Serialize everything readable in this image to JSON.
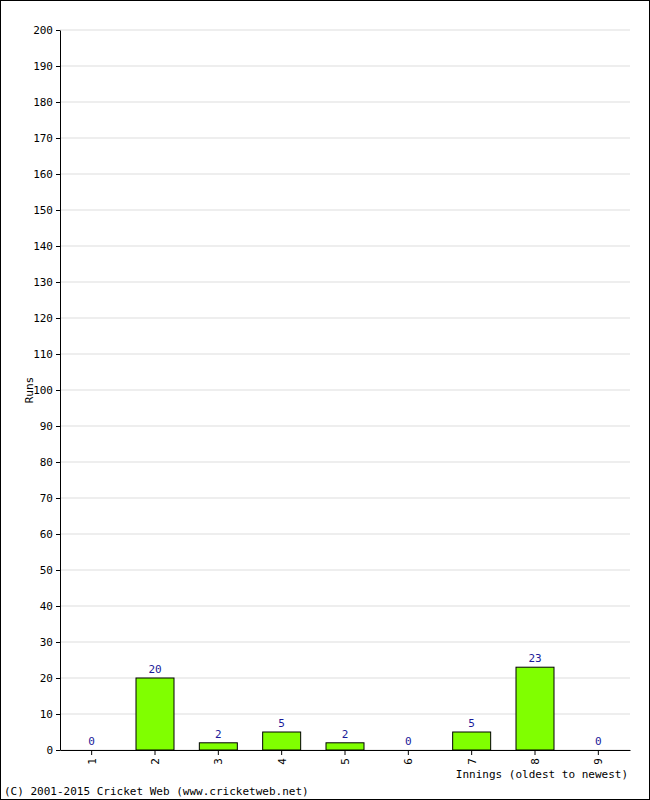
{
  "chart_data": {
    "type": "bar",
    "y_label": "Runs",
    "x_label": "Innings (oldest to newest)",
    "annotations": [
      "(C) 2001-2015 Cricket Web (www.cricketweb.net)"
    ],
    "categories": [
      "1",
      "2",
      "3",
      "4",
      "5",
      "6",
      "7",
      "8",
      "9"
    ],
    "values": [
      0,
      20,
      2,
      5,
      2,
      0,
      5,
      23,
      0
    ],
    "color": "#80ff00",
    "ylim": [
      0,
      200
    ],
    "yticks": [
      0,
      10,
      20,
      30,
      40,
      50,
      60,
      70,
      80,
      90,
      100,
      110,
      120,
      130,
      140,
      150,
      160,
      170,
      180,
      190,
      200
    ],
    "grid": true,
    "data_labels": true
  }
}
